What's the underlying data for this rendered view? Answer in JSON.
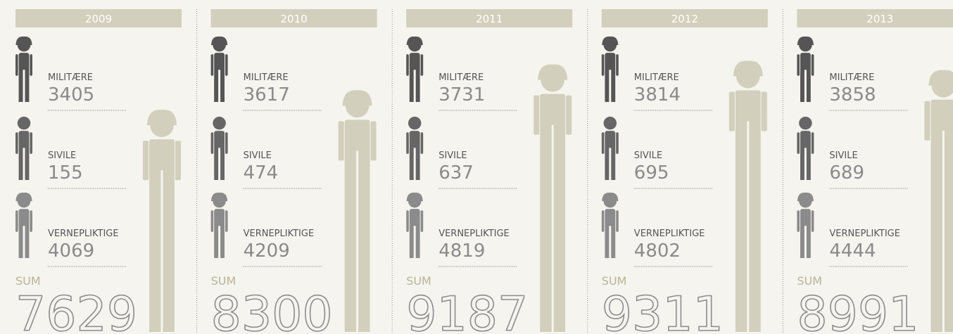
{
  "labels": {
    "militaere": "MILITÆRE",
    "sivile": "SIVILE",
    "vernepliktige": "VERNEPLIKTIGE",
    "sum": "SUM"
  },
  "years": [
    {
      "year": "2009",
      "militaere": 3405,
      "sivile": 155,
      "vernepliktige": 4069,
      "sum": 7629
    },
    {
      "year": "2010",
      "militaere": 3617,
      "sivile": 474,
      "vernepliktige": 4209,
      "sum": 8300
    },
    {
      "year": "2011",
      "militaere": 3731,
      "sivile": 637,
      "vernepliktige": 4819,
      "sum": 9187
    },
    {
      "year": "2012",
      "militaere": 3814,
      "sivile": 695,
      "vernepliktige": 4802,
      "sum": 9311
    },
    {
      "year": "2013",
      "militaere": 3858,
      "sivile": 689,
      "vernepliktige": 4444,
      "sum": 8991
    }
  ]
}
